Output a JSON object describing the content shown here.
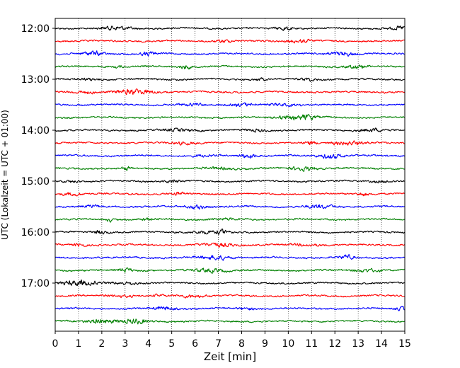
{
  "chart_data": {
    "type": "line",
    "title": "",
    "xlabel": "Zeit  [min]",
    "ylabel": "UTC (Lokalzeit = UTC + 01:00)",
    "xlim": [
      0,
      15
    ],
    "x_ticks": [
      "0",
      "1",
      "2",
      "3",
      "4",
      "5",
      "6",
      "7",
      "8",
      "9",
      "10",
      "11",
      "12",
      "13",
      "14",
      "15"
    ],
    "y_ticks": [
      "12:00",
      "13:00",
      "14:00",
      "15:00",
      "16:00",
      "17:00"
    ],
    "trace_interval_min": 15,
    "trace_start": "12:00",
    "trace_count": 24,
    "trace_colors": [
      "#000000",
      "#ff0000",
      "#0000ff",
      "#008000"
    ],
    "grid": "vertical dotted lines at each minute",
    "legend": "none"
  }
}
